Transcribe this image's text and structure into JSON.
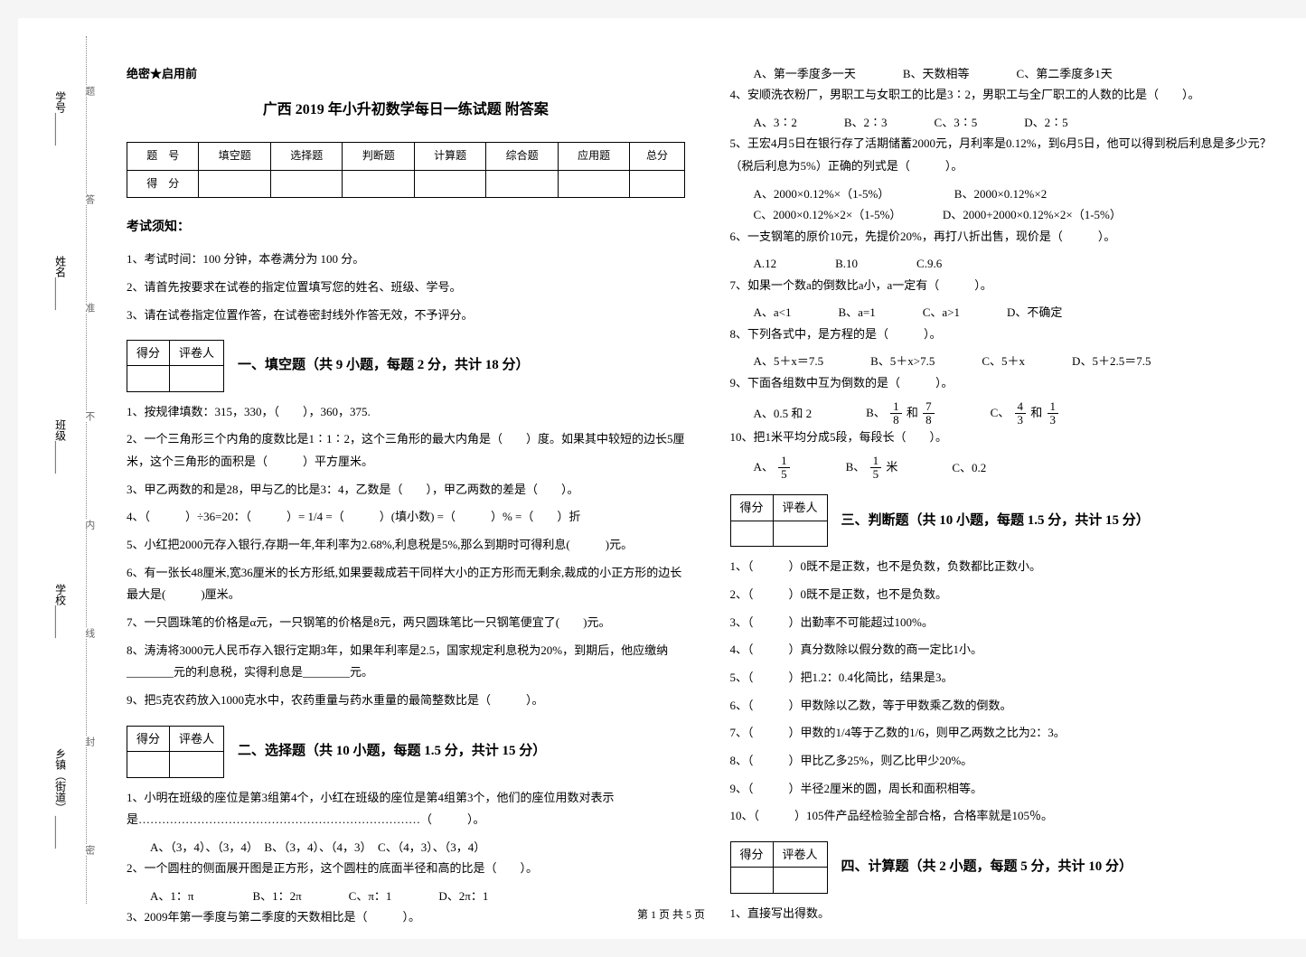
{
  "binding": {
    "labels": [
      "乡镇（街道）",
      "学校",
      "班级",
      "姓名",
      "学号"
    ],
    "dotted_labels": [
      "密",
      "封",
      "线",
      "内",
      "不",
      "准",
      "答",
      "题"
    ]
  },
  "header": {
    "confidential": "绝密★启用前",
    "title": "广西 2019 年小升初数学每日一练试题 附答案"
  },
  "score_table": {
    "row1": [
      "题　号",
      "填空题",
      "选择题",
      "判断题",
      "计算题",
      "综合题",
      "应用题",
      "总分"
    ],
    "row2_label": "得　分"
  },
  "notice": {
    "title": "考试须知：",
    "items": [
      "1、考试时间：100 分钟，本卷满分为 100 分。",
      "2、请首先按要求在试卷的指定位置填写您的姓名、班级、学号。",
      "3、请在试卷指定位置作答，在试卷密封线外作答无效，不予评分。"
    ]
  },
  "score_box": {
    "c1": "得分",
    "c2": "评卷人"
  },
  "sections": {
    "s1": {
      "title": "一、填空题（共 9 小题，每题 2 分，共计 18 分）",
      "q1": "1、按规律填数：315，330，（　　），360，375.",
      "q2": "2、一个三角形三个内角的度数比是1∶1∶2，这个三角形的最大内角是（　　）度。如果其中较短的边长5厘米，这个三角形的面积是（　　　）平方厘米。",
      "q3": "3、甲乙两数的和是28，甲与乙的比是3：4，乙数是（　　），甲乙两数的差是（　　）。",
      "q4": "4、（　　　）÷36=20：（　　　）= 1/4 =（　　　）(填小数) =（　　　）% =（　　）折",
      "q5": "5、小红把2000元存入银行,存期一年,年利率为2.68%,利息税是5%,那么到期时可得利息(　　　)元。",
      "q6": "6、有一张长48厘米,宽36厘米的长方形纸,如果要裁成若干同样大小的正方形而无剩余,裁成的小正方形的边长最大是(　　　)厘米。",
      "q7": "7、一只圆珠笔的价格是α元，一只钢笔的价格是8元，两只圆珠笔比一只钢笔便宜了(　　)元。",
      "q8": "8、涛涛将3000元人民币存入银行定期3年，如果年利率是2.5，国家规定利息税为20%，到期后，他应缴纳________元的利息税，实得利息是________元。",
      "q9": "9、把5克农药放入1000克水中，农药重量与药水重量的最简整数比是（　　　）。"
    },
    "s2": {
      "title": "二、选择题（共 10 小题，每题 1.5 分，共计 15 分）",
      "q1": "1、小明在班级的座位是第3组第4个，小红在班级的座位是第4组第3个，他们的座位用数对表示是………………………………………………………………（　　　）。",
      "q1_opts": "A、（3，4）、（3，4）　B、（3，4）、（4，3）　C、（4，3）、（3，4）",
      "q2": "2、一个圆柱的侧面展开图是正方形，这个圆柱的底面半径和高的比是（　　）。",
      "q2_opts": "A、1：π　　　　　B、1：2π　　　　C、π：1　　　　D、2π：1",
      "q3": "3、2009年第一季度与第二季度的天数相比是（　　　）。",
      "q3_opts": "A、第一季度多一天　　　　B、天数相等　　　　C、第二季度多1天",
      "q4": "4、安顺洗衣粉厂，男职工与女职工的比是3∶2，男职工与全厂职工的人数的比是（　　）。",
      "q4_opts": "A、3∶2　　　　B、2∶3　　　　C、3∶5　　　　D、2∶5",
      "q5": "5、王宏4月5日在银行存了活期储蓄2000元，月利率是0.12%，到6月5日，他可以得到税后利息是多少元？（税后利息为5%）正确的列式是（　　　）。",
      "q5_opts1": "A、2000×0.12%×（1-5%）　　　　　　B、2000×0.12%×2",
      "q5_opts2": "C、2000×0.12%×2×（1-5%）　　　　D、2000+2000×0.12%×2×（1-5%）",
      "q6": "6、一支钢笔的原价10元，先提价20%，再打八折出售，现价是（　　　）。",
      "q6_opts": "A.12　　　　　B.10　　　　　C.9.6",
      "q7": "7、如果一个数a的倒数比a小，a一定有（　　　）。",
      "q7_opts": "A、a<1　　　　B、a=1　　　　C、a>1　　　　D、不确定",
      "q8": "8、下列各式中，是方程的是（　　　）。",
      "q8_opts": "A、5＋x＝7.5　　　　B、5＋x>7.5　　　　C、5＋x　　　　D、5＋2.5＝7.5",
      "q9": "9、下面各组数中互为倒数的是（　　　）。",
      "q9_optA": "A、0.5 和 2",
      "q9_optB_prefix": "B、",
      "q9_optB_and": " 和 ",
      "q9_optC_prefix": "C、",
      "q9_optC_and": " 和 ",
      "q10": "10、把1米平均分成5段，每段长（　　）。",
      "q10_optA_prefix": "A、",
      "q10_optB_prefix": "B、",
      "q10_optB_suffix": "米",
      "q10_optC": "C、0.2"
    },
    "s3": {
      "title": "三、判断题（共 10 小题，每题 1.5 分，共计 15 分）",
      "q1": "1、（　　　）0既不是正数，也不是负数，负数都比正数小。",
      "q2": "2、（　　　）0既不是正数，也不是负数。",
      "q3": "3、（　　　）出勤率不可能超过100%。",
      "q4": "4、（　　　）真分数除以假分数的商一定比1小。",
      "q5": "5、（　　　）把1.2：0.4化简比，结果是3。",
      "q6": "6、（　　　）甲数除以乙数，等于甲数乘乙数的倒数。",
      "q7": "7、（　　　）甲数的1/4等于乙数的1/6，则甲乙两数之比为2：3。",
      "q8": "8、（　　　）甲比乙多25%，则乙比甲少20%。",
      "q9": "9、（　　　）半径2厘米的圆，周长和面积相等。",
      "q10": "10、（　　　）105件产品经检验全部合格，合格率就是105％。"
    },
    "s4": {
      "title": "四、计算题（共 2 小题，每题 5 分，共计 10 分）",
      "q1": "1、直接写出得数。"
    }
  },
  "fractions": {
    "f1_8": {
      "num": "1",
      "den": "8"
    },
    "f7_8": {
      "num": "7",
      "den": "8"
    },
    "f4_3": {
      "num": "4",
      "den": "3"
    },
    "f1_3": {
      "num": "1",
      "den": "3"
    },
    "f1_5": {
      "num": "1",
      "den": "5"
    }
  },
  "footer": "第 1 页 共 5 页"
}
